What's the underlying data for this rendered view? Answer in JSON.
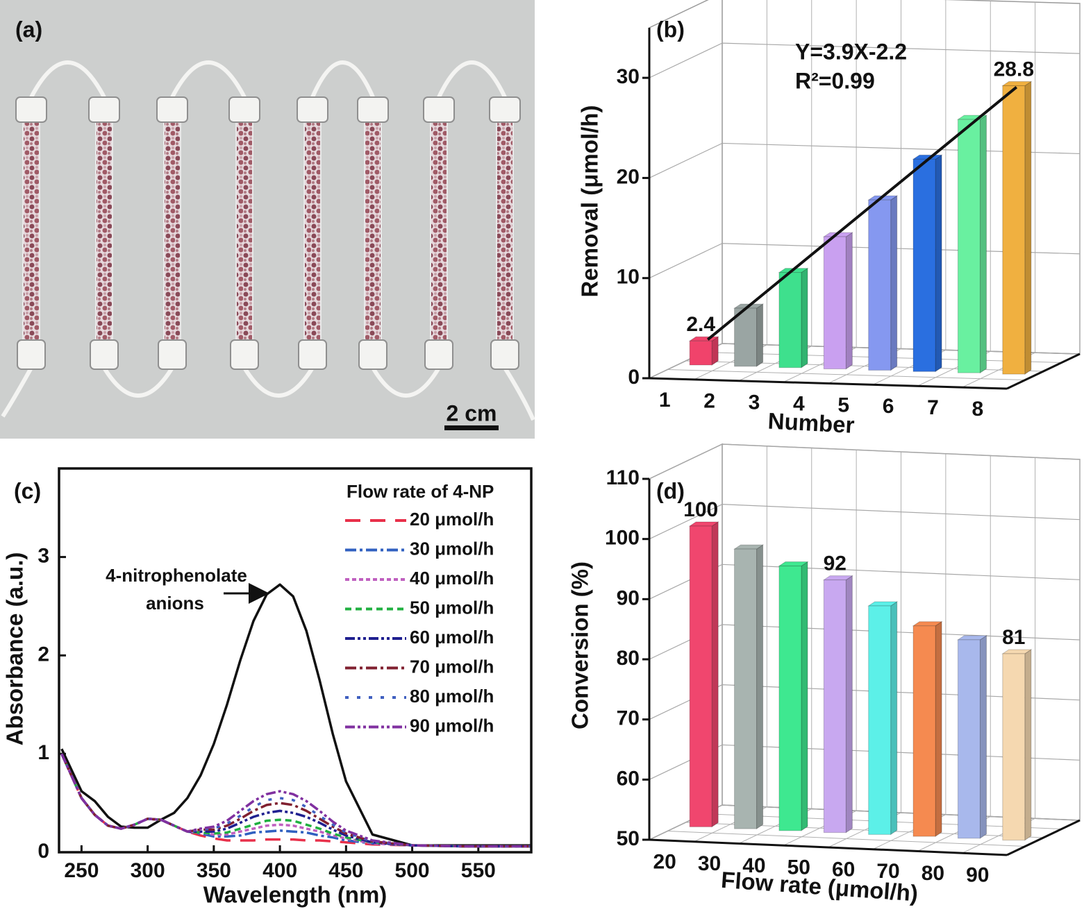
{
  "photo": {
    "label": "(a)",
    "scale_bar": "2 cm"
  },
  "chart_data": [
    {
      "type": "bar3d",
      "label": "(b)",
      "categories": [
        "1",
        "2",
        "3",
        "4",
        "5",
        "6",
        "7",
        "8"
      ],
      "values": [
        2.4,
        5.8,
        9.5,
        13.2,
        17.0,
        21.2,
        25.3,
        28.8
      ],
      "value_labels": [
        "2.4",
        null,
        null,
        null,
        null,
        null,
        null,
        "28.8"
      ],
      "colors": [
        "#f0436b",
        "#9aa5a3",
        "#3ee08d",
        "#c9a0f0",
        "#8598f0",
        "#2a6fe0",
        "#69f0a0",
        "#f0b040"
      ],
      "ylim": [
        0,
        35
      ],
      "yticks": [
        0,
        10,
        20,
        30
      ],
      "xlabel": "Number",
      "ylabel": "Removal (μmol/h)",
      "fit": {
        "equation": "Y=3.9X-2.2",
        "r2": "R²=0.99"
      }
    },
    {
      "type": "line",
      "label": "(c)",
      "x": [
        235,
        250,
        260,
        270,
        280,
        290,
        300,
        310,
        320,
        330,
        340,
        350,
        360,
        370,
        380,
        390,
        400,
        410,
        420,
        430,
        440,
        450,
        470,
        500,
        540,
        590
      ],
      "series": [
        {
          "color": "#111111",
          "dash": "none",
          "values": [
            1.05,
            0.62,
            0.52,
            0.36,
            0.26,
            0.25,
            0.25,
            0.33,
            0.4,
            0.55,
            0.78,
            1.1,
            1.5,
            1.95,
            2.35,
            2.62,
            2.72,
            2.6,
            2.25,
            1.75,
            1.2,
            0.72,
            0.18,
            0.07,
            0.07,
            0.07
          ]
        },
        {
          "name": "20 μmol/h",
          "color": "#e8304a",
          "dash": "22,14",
          "values": [
            1.0,
            0.55,
            0.38,
            0.27,
            0.24,
            0.28,
            0.34,
            0.33,
            0.27,
            0.21,
            0.17,
            0.14,
            0.12,
            0.12,
            0.12,
            0.13,
            0.13,
            0.13,
            0.12,
            0.12,
            0.11,
            0.1,
            0.08,
            0.07,
            0.06,
            0.06
          ]
        },
        {
          "name": "30 μmol/h",
          "color": "#3060c0",
          "dash": "16,5,4,5",
          "values": [
            1.0,
            0.55,
            0.38,
            0.27,
            0.24,
            0.28,
            0.34,
            0.33,
            0.27,
            0.21,
            0.19,
            0.16,
            0.16,
            0.17,
            0.2,
            0.21,
            0.22,
            0.21,
            0.2,
            0.17,
            0.15,
            0.12,
            0.09,
            0.07,
            0.06,
            0.06
          ]
        },
        {
          "name": "40 μmol/h",
          "color": "#c060c0",
          "dash": "6,4",
          "values": [
            1.0,
            0.55,
            0.38,
            0.27,
            0.24,
            0.28,
            0.34,
            0.33,
            0.27,
            0.21,
            0.2,
            0.18,
            0.18,
            0.21,
            0.24,
            0.27,
            0.28,
            0.27,
            0.24,
            0.21,
            0.17,
            0.14,
            0.09,
            0.07,
            0.06,
            0.06
          ]
        },
        {
          "name": "50 μmol/h",
          "color": "#20b040",
          "dash": "9,6",
          "values": [
            1.0,
            0.55,
            0.38,
            0.27,
            0.24,
            0.28,
            0.34,
            0.33,
            0.27,
            0.21,
            0.2,
            0.19,
            0.2,
            0.24,
            0.28,
            0.32,
            0.33,
            0.32,
            0.28,
            0.24,
            0.19,
            0.15,
            0.1,
            0.07,
            0.06,
            0.06
          ]
        },
        {
          "name": "60 μmol/h",
          "color": "#202090",
          "dash": "14,4,4,4,4,4",
          "values": [
            1.0,
            0.55,
            0.38,
            0.27,
            0.24,
            0.28,
            0.34,
            0.33,
            0.27,
            0.21,
            0.21,
            0.21,
            0.24,
            0.3,
            0.36,
            0.4,
            0.42,
            0.4,
            0.36,
            0.3,
            0.23,
            0.17,
            0.1,
            0.07,
            0.06,
            0.06
          ]
        },
        {
          "name": "70 μmol/h",
          "color": "#802030",
          "dash": "16,5,4,5",
          "values": [
            1.0,
            0.55,
            0.38,
            0.27,
            0.24,
            0.28,
            0.34,
            0.33,
            0.27,
            0.21,
            0.23,
            0.23,
            0.27,
            0.34,
            0.42,
            0.48,
            0.5,
            0.48,
            0.42,
            0.34,
            0.26,
            0.19,
            0.11,
            0.07,
            0.06,
            0.06
          ]
        },
        {
          "name": "80 μmol/h",
          "color": "#4060c0",
          "dash": "5,12",
          "values": [
            1.0,
            0.55,
            0.38,
            0.27,
            0.24,
            0.28,
            0.34,
            0.33,
            0.27,
            0.21,
            0.23,
            0.24,
            0.29,
            0.37,
            0.46,
            0.53,
            0.55,
            0.53,
            0.46,
            0.37,
            0.28,
            0.2,
            0.11,
            0.07,
            0.06,
            0.06
          ]
        },
        {
          "name": "90 μmol/h",
          "color": "#8030a0",
          "dash": "14,4,4,4,4,4",
          "values": [
            1.0,
            0.55,
            0.38,
            0.27,
            0.24,
            0.28,
            0.34,
            0.33,
            0.27,
            0.21,
            0.24,
            0.26,
            0.32,
            0.42,
            0.52,
            0.59,
            0.62,
            0.59,
            0.52,
            0.42,
            0.31,
            0.22,
            0.12,
            0.07,
            0.06,
            0.06
          ]
        }
      ],
      "xlim": [
        233,
        590
      ],
      "xticks": [
        250,
        300,
        350,
        400,
        450,
        500,
        550
      ],
      "ylim": [
        0,
        3.9
      ],
      "yticks": [
        0,
        1,
        2,
        3
      ],
      "xlabel": "Wavelength (nm)",
      "ylabel": "Absorbance (a.u.)",
      "legend_title": "Flow rate of 4-NP",
      "annotation": [
        "4-nitrophenolate",
        "anions"
      ]
    },
    {
      "type": "bar3d",
      "label": "(d)",
      "categories": [
        "20",
        "30",
        "40",
        "50",
        "60",
        "70",
        "80",
        "90"
      ],
      "values": [
        100,
        96.5,
        94,
        92,
        88,
        85,
        83,
        81
      ],
      "value_labels": [
        "100",
        null,
        null,
        "92",
        null,
        null,
        null,
        "81"
      ],
      "colors": [
        "#f0466e",
        "#a8b4b0",
        "#3ee890",
        "#c8a8f0",
        "#5cf0e8",
        "#f58a50",
        "#a8b8ec",
        "#f5d8b0"
      ],
      "ylim": [
        50,
        110
      ],
      "yticks": [
        50,
        60,
        70,
        80,
        90,
        100,
        110
      ],
      "xlabel": "Flow rate (μmol/h)",
      "ylabel": "Conversion (%)"
    }
  ]
}
